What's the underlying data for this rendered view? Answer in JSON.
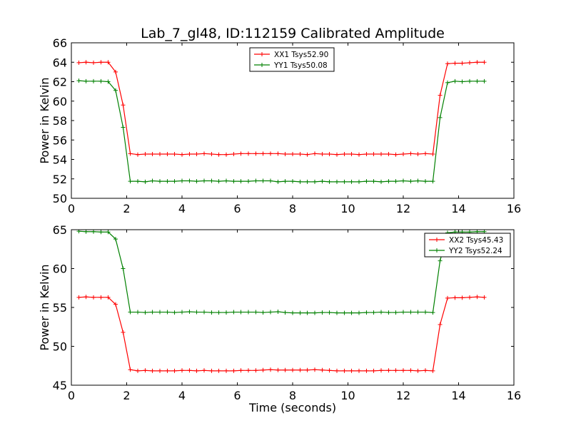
{
  "title": "Lab_7_gl48, ID:112159 Calibrated Amplitude",
  "chart_data": [
    {
      "type": "line",
      "ylabel": "Power in Kelvin",
      "xlabel": "",
      "xlim": [
        0,
        16
      ],
      "ylim": [
        50,
        66
      ],
      "xticks": [
        0,
        2,
        4,
        6,
        8,
        10,
        12,
        14,
        16
      ],
      "yticks": [
        50,
        52,
        54,
        56,
        58,
        60,
        62,
        64,
        66
      ],
      "legend_position": "top-center",
      "series": [
        {
          "name": "XX1 Tsys52.90",
          "color": "#ff0000",
          "x": [
            0.27,
            0.53,
            0.8,
            1.07,
            1.33,
            1.6,
            1.87,
            2.13,
            2.4,
            2.67,
            2.93,
            3.2,
            3.47,
            3.73,
            4.0,
            4.27,
            4.53,
            4.8,
            5.07,
            5.33,
            5.6,
            5.87,
            6.13,
            6.4,
            6.67,
            6.93,
            7.2,
            7.47,
            7.73,
            8.0,
            8.27,
            8.53,
            8.8,
            9.07,
            9.33,
            9.6,
            9.87,
            10.13,
            10.4,
            10.67,
            10.93,
            11.2,
            11.47,
            11.73,
            12.0,
            12.27,
            12.53,
            12.8,
            13.07,
            13.33,
            13.6,
            13.87,
            14.13,
            14.4,
            14.67,
            14.93
          ],
          "y": [
            63.95,
            64.0,
            63.95,
            64.0,
            64.0,
            63.0,
            59.6,
            54.6,
            54.5,
            54.55,
            54.55,
            54.55,
            54.55,
            54.55,
            54.5,
            54.55,
            54.55,
            54.6,
            54.55,
            54.5,
            54.5,
            54.55,
            54.6,
            54.6,
            54.6,
            54.6,
            54.6,
            54.6,
            54.55,
            54.55,
            54.55,
            54.5,
            54.6,
            54.55,
            54.55,
            54.5,
            54.55,
            54.55,
            54.5,
            54.55,
            54.55,
            54.55,
            54.55,
            54.5,
            54.55,
            54.6,
            54.55,
            54.6,
            54.55,
            60.6,
            63.85,
            63.9,
            63.9,
            63.95,
            64.0,
            64.0
          ]
        },
        {
          "name": "YY1 Tsys50.08",
          "color": "#008000",
          "x": [
            0.27,
            0.53,
            0.8,
            1.07,
            1.33,
            1.6,
            1.87,
            2.13,
            2.4,
            2.67,
            2.93,
            3.2,
            3.47,
            3.73,
            4.0,
            4.27,
            4.53,
            4.8,
            5.07,
            5.33,
            5.6,
            5.87,
            6.13,
            6.4,
            6.67,
            6.93,
            7.2,
            7.47,
            7.73,
            8.0,
            8.27,
            8.53,
            8.8,
            9.07,
            9.33,
            9.6,
            9.87,
            10.13,
            10.4,
            10.67,
            10.93,
            11.2,
            11.47,
            11.73,
            12.0,
            12.27,
            12.53,
            12.8,
            13.07,
            13.33,
            13.6,
            13.87,
            14.13,
            14.4,
            14.67,
            14.93
          ],
          "y": [
            62.1,
            62.05,
            62.05,
            62.05,
            62.0,
            61.1,
            57.3,
            51.75,
            51.75,
            51.7,
            51.8,
            51.75,
            51.75,
            51.75,
            51.8,
            51.8,
            51.75,
            51.8,
            51.8,
            51.75,
            51.8,
            51.75,
            51.75,
            51.75,
            51.8,
            51.8,
            51.8,
            51.7,
            51.75,
            51.75,
            51.7,
            51.7,
            51.7,
            51.75,
            51.7,
            51.7,
            51.7,
            51.7,
            51.7,
            51.75,
            51.75,
            51.7,
            51.75,
            51.75,
            51.8,
            51.75,
            51.8,
            51.75,
            51.75,
            58.3,
            61.9,
            62.05,
            62.0,
            62.05,
            62.05,
            62.05
          ]
        }
      ]
    },
    {
      "type": "line",
      "ylabel": "Power in Kelvin",
      "xlabel": "Time (seconds)",
      "xlim": [
        0,
        16
      ],
      "ylim": [
        45,
        65
      ],
      "xticks": [
        0,
        2,
        4,
        6,
        8,
        10,
        12,
        14,
        16
      ],
      "yticks": [
        45,
        50,
        55,
        60,
        65
      ],
      "legend_position": "top-right",
      "series": [
        {
          "name": "XX2 Tsys45.43",
          "color": "#ff0000",
          "x": [
            0.27,
            0.53,
            0.8,
            1.07,
            1.33,
            1.6,
            1.87,
            2.13,
            2.4,
            2.67,
            2.93,
            3.2,
            3.47,
            3.73,
            4.0,
            4.27,
            4.53,
            4.8,
            5.07,
            5.33,
            5.6,
            5.87,
            6.13,
            6.4,
            6.67,
            6.93,
            7.2,
            7.47,
            7.73,
            8.0,
            8.27,
            8.53,
            8.8,
            9.07,
            9.33,
            9.6,
            9.87,
            10.13,
            10.4,
            10.67,
            10.93,
            11.2,
            11.47,
            11.73,
            12.0,
            12.27,
            12.53,
            12.8,
            13.07,
            13.33,
            13.6,
            13.87,
            14.13,
            14.4,
            14.67,
            14.93
          ],
          "y": [
            56.3,
            56.35,
            56.3,
            56.3,
            56.3,
            55.4,
            51.8,
            47.0,
            46.85,
            46.9,
            46.85,
            46.85,
            46.85,
            46.85,
            46.9,
            46.9,
            46.85,
            46.9,
            46.85,
            46.85,
            46.85,
            46.85,
            46.9,
            46.9,
            46.9,
            46.95,
            47.0,
            46.95,
            46.95,
            46.95,
            46.95,
            46.95,
            47.0,
            46.95,
            46.9,
            46.85,
            46.85,
            46.85,
            46.85,
            46.85,
            46.85,
            46.9,
            46.9,
            46.9,
            46.9,
            46.9,
            46.85,
            46.9,
            46.85,
            52.8,
            56.2,
            56.25,
            56.25,
            56.3,
            56.35,
            56.3
          ]
        },
        {
          "name": "YY2 Tsys52.24",
          "color": "#008000",
          "x": [
            0.27,
            0.53,
            0.8,
            1.07,
            1.33,
            1.6,
            1.87,
            2.13,
            2.4,
            2.67,
            2.93,
            3.2,
            3.47,
            3.73,
            4.0,
            4.27,
            4.53,
            4.8,
            5.07,
            5.33,
            5.6,
            5.87,
            6.13,
            6.4,
            6.67,
            6.93,
            7.2,
            7.47,
            7.73,
            8.0,
            8.27,
            8.53,
            8.8,
            9.07,
            9.33,
            9.6,
            9.87,
            10.13,
            10.4,
            10.67,
            10.93,
            11.2,
            11.47,
            11.73,
            12.0,
            12.27,
            12.53,
            12.8,
            13.07,
            13.33,
            13.6,
            13.87,
            14.13,
            14.4,
            14.67,
            14.93
          ],
          "y": [
            64.8,
            64.75,
            64.75,
            64.7,
            64.7,
            63.8,
            60.0,
            54.4,
            54.4,
            54.35,
            54.4,
            54.4,
            54.4,
            54.35,
            54.4,
            54.45,
            54.4,
            54.4,
            54.35,
            54.35,
            54.35,
            54.4,
            54.4,
            54.4,
            54.4,
            54.35,
            54.4,
            54.45,
            54.35,
            54.3,
            54.3,
            54.3,
            54.3,
            54.35,
            54.35,
            54.3,
            54.3,
            54.3,
            54.3,
            54.35,
            54.35,
            54.4,
            54.35,
            54.35,
            54.4,
            54.4,
            54.4,
            54.4,
            54.35,
            61.0,
            64.6,
            64.7,
            64.7,
            64.7,
            64.75,
            64.75
          ]
        }
      ]
    }
  ]
}
